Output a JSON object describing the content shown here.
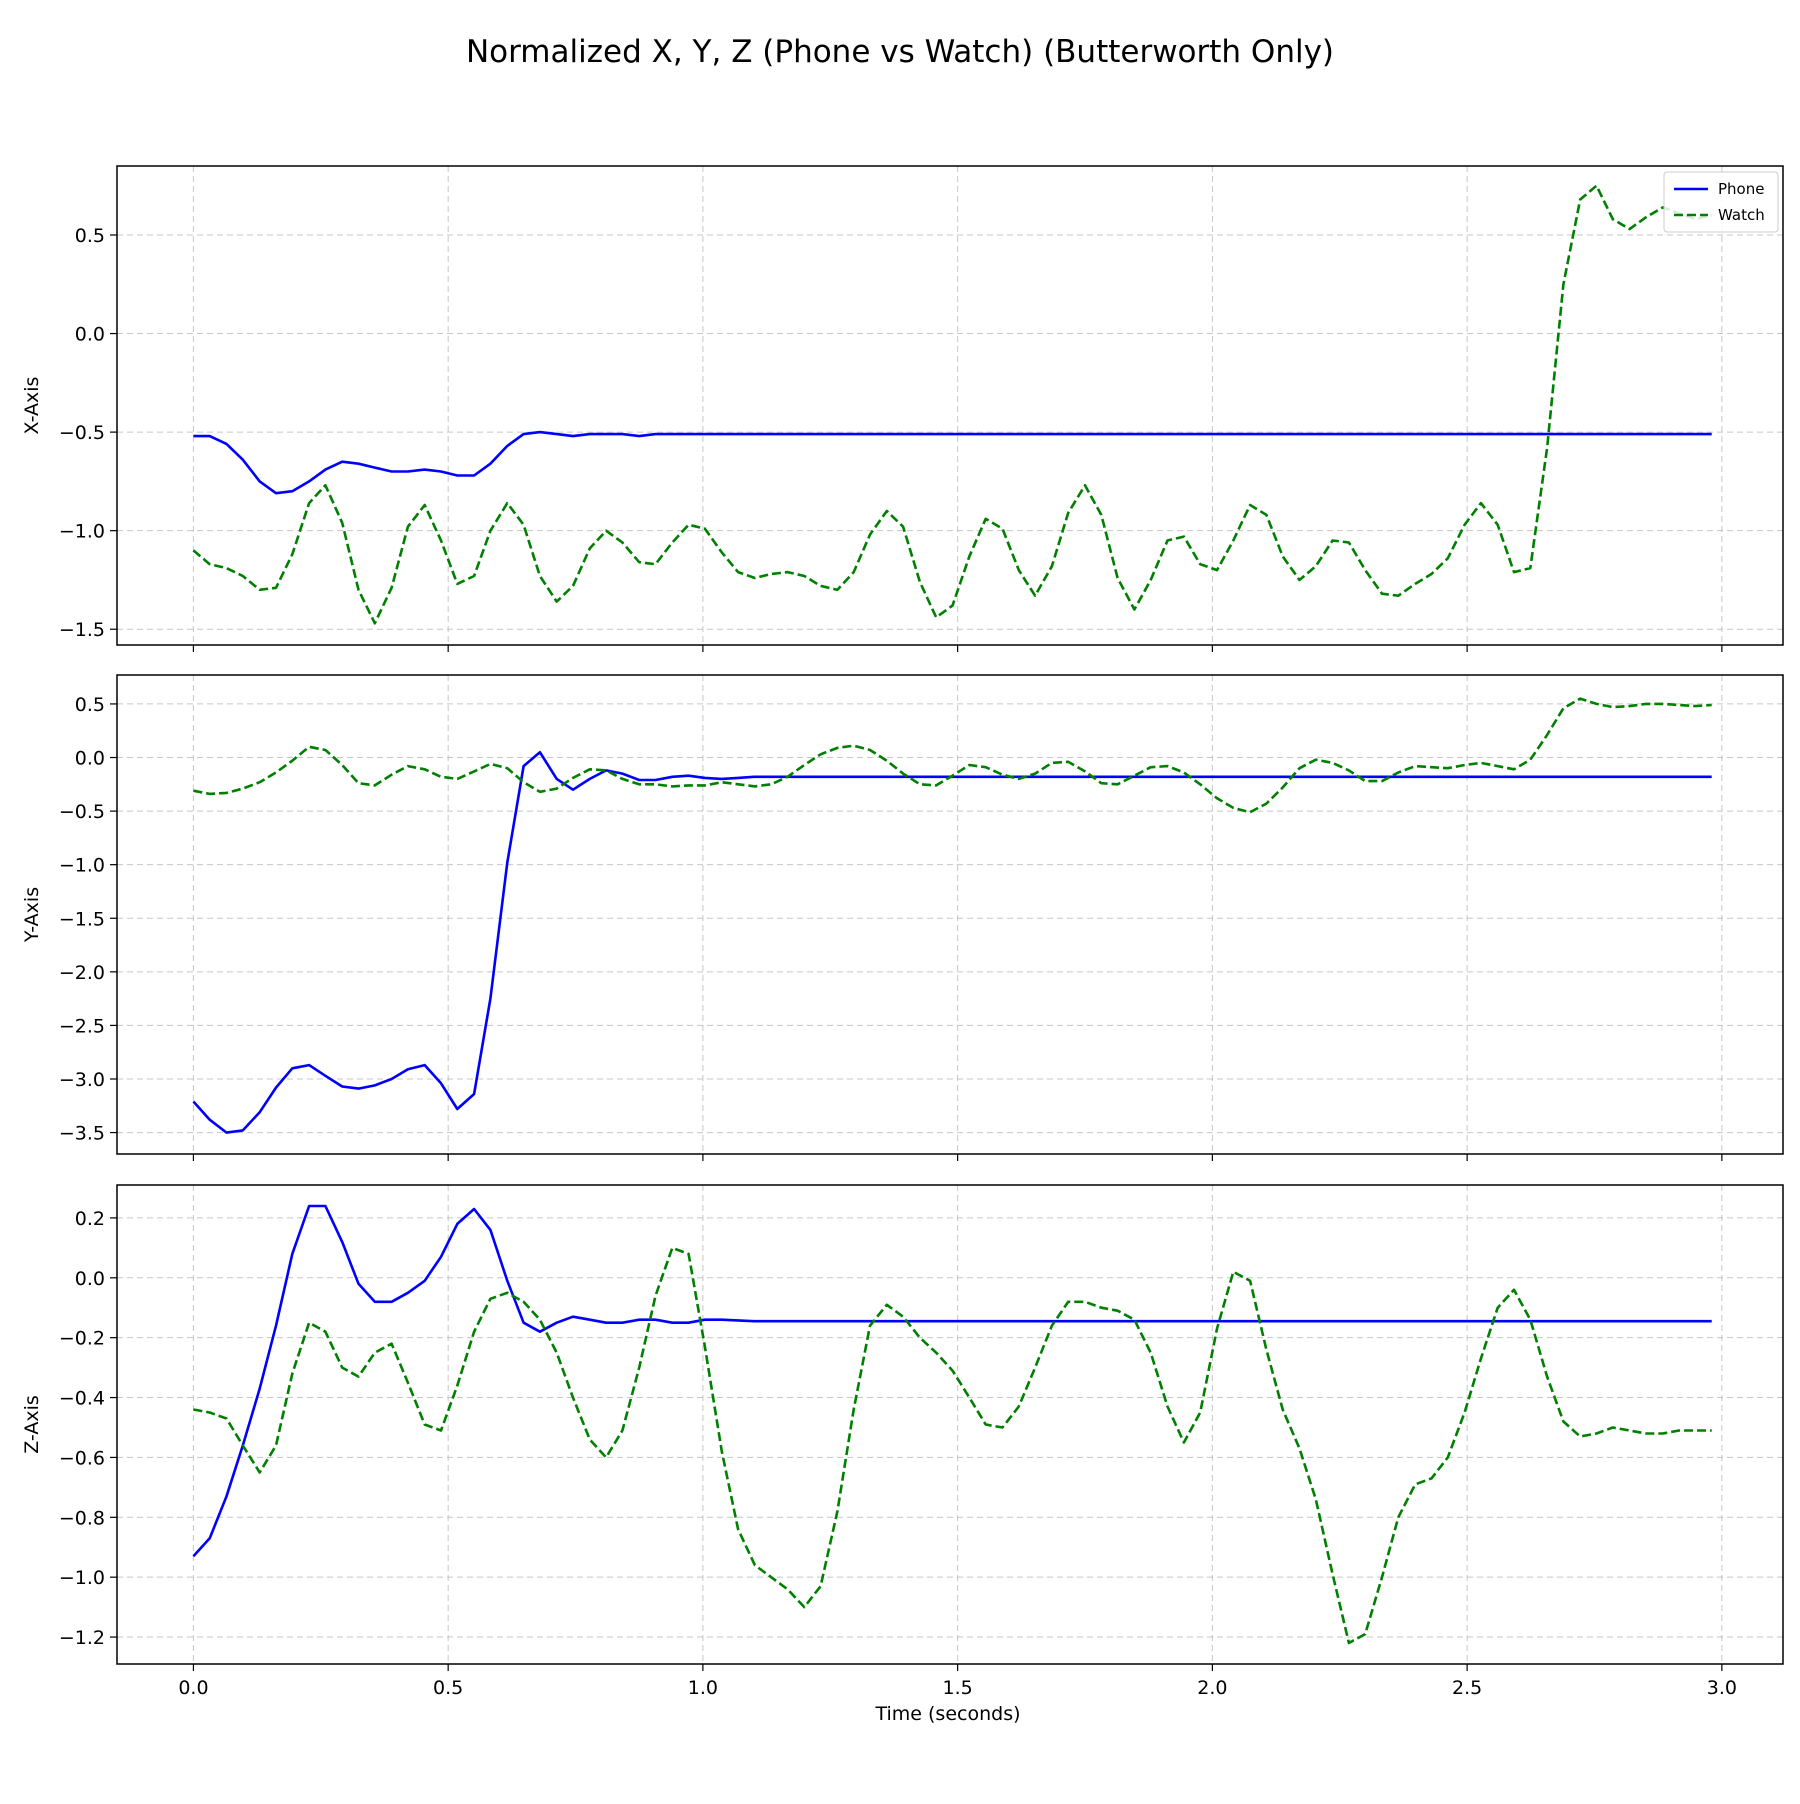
{
  "figure": {
    "title": "Normalized X, Y, Z (Phone vs Watch) (Butterworth Only)",
    "xlabel": "Time (seconds)",
    "colors": {
      "phone": "#0000ff",
      "watch": "#008000",
      "grid": "#b0b0b0"
    }
  },
  "chart_data": [
    {
      "type": "line",
      "ylabel": "X-Axis",
      "xlim": [
        -0.15,
        3.12
      ],
      "ylim": [
        -1.58,
        0.85
      ],
      "xticks": [
        0.0,
        0.5,
        1.0,
        1.5,
        2.0,
        2.5,
        3.0
      ],
      "yticks": [
        -1.5,
        -1.0,
        -0.5,
        0.0,
        0.5
      ],
      "ytick_labels": [
        "−1.5",
        "−1.0",
        "−0.5",
        "0.0",
        "0.5"
      ],
      "grid": true,
      "legend": {
        "position": "top-right",
        "entries": [
          "Phone",
          "Watch"
        ]
      },
      "series": [
        {
          "name": "Phone",
          "style": "solid",
          "x": [
            0.0,
            0.032,
            0.065,
            0.097,
            0.13,
            0.162,
            0.194,
            0.227,
            0.259,
            0.292,
            0.324,
            0.356,
            0.389,
            0.421,
            0.454,
            0.486,
            0.518,
            0.551,
            0.583,
            0.616,
            0.648,
            0.68,
            0.713,
            0.745,
            0.778,
            0.81,
            0.842,
            0.875,
            0.907,
            0.94,
            0.97,
            1.0,
            1.1,
            1.3,
            1.6,
            2.0,
            2.5,
            2.98
          ],
          "y": [
            -0.52,
            -0.52,
            -0.56,
            -0.64,
            -0.75,
            -0.81,
            -0.8,
            -0.75,
            -0.69,
            -0.65,
            -0.66,
            -0.68,
            -0.7,
            -0.7,
            -0.69,
            -0.7,
            -0.72,
            -0.72,
            -0.66,
            -0.57,
            -0.51,
            -0.5,
            -0.51,
            -0.52,
            -0.51,
            -0.51,
            -0.51,
            -0.52,
            -0.51,
            -0.51,
            -0.51,
            -0.51,
            -0.51,
            -0.51,
            -0.51,
            -0.51,
            -0.51,
            -0.51
          ]
        },
        {
          "name": "Watch",
          "style": "dashed",
          "x": [
            0.0,
            0.032,
            0.065,
            0.097,
            0.13,
            0.162,
            0.194,
            0.227,
            0.259,
            0.292,
            0.324,
            0.356,
            0.389,
            0.421,
            0.454,
            0.486,
            0.518,
            0.551,
            0.583,
            0.616,
            0.648,
            0.68,
            0.713,
            0.745,
            0.778,
            0.81,
            0.842,
            0.875,
            0.907,
            0.94,
            0.972,
            1.004,
            1.037,
            1.069,
            1.102,
            1.134,
            1.166,
            1.199,
            1.231,
            1.264,
            1.296,
            1.328,
            1.361,
            1.393,
            1.426,
            1.458,
            1.49,
            1.523,
            1.555,
            1.588,
            1.62,
            1.652,
            1.685,
            1.717,
            1.75,
            1.782,
            1.814,
            1.847,
            1.879,
            1.912,
            1.944,
            1.976,
            2.009,
            2.041,
            2.074,
            2.106,
            2.138,
            2.171,
            2.203,
            2.236,
            2.268,
            2.3,
            2.333,
            2.365,
            2.398,
            2.43,
            2.462,
            2.495,
            2.527,
            2.56,
            2.592,
            2.624,
            2.657,
            2.689,
            2.722,
            2.754,
            2.786,
            2.819,
            2.851,
            2.884,
            2.916,
            2.948,
            2.98
          ],
          "y": [
            -1.1,
            -1.17,
            -1.19,
            -1.23,
            -1.3,
            -1.29,
            -1.12,
            -0.86,
            -0.77,
            -0.96,
            -1.3,
            -1.47,
            -1.29,
            -0.98,
            -0.87,
            -1.05,
            -1.27,
            -1.23,
            -1.0,
            -0.86,
            -0.97,
            -1.23,
            -1.36,
            -1.28,
            -1.09,
            -1.0,
            -1.06,
            -1.16,
            -1.17,
            -1.06,
            -0.97,
            -0.99,
            -1.11,
            -1.21,
            -1.24,
            -1.22,
            -1.21,
            -1.23,
            -1.28,
            -1.3,
            -1.21,
            -1.02,
            -0.9,
            -0.98,
            -1.26,
            -1.44,
            -1.38,
            -1.13,
            -0.94,
            -0.99,
            -1.2,
            -1.33,
            -1.18,
            -0.91,
            -0.77,
            -0.92,
            -1.24,
            -1.4,
            -1.25,
            -1.05,
            -1.03,
            -1.17,
            -1.2,
            -1.05,
            -0.87,
            -0.92,
            -1.13,
            -1.25,
            -1.18,
            -1.05,
            -1.06,
            -1.2,
            -1.32,
            -1.33,
            -1.27,
            -1.22,
            -1.14,
            -0.97,
            -0.86,
            -0.97,
            -1.21,
            -1.19,
            -0.58,
            0.25,
            0.68,
            0.75,
            0.58,
            0.53,
            0.59,
            0.64,
            0.61,
            0.58,
            0.6
          ]
        }
      ]
    },
    {
      "type": "line",
      "ylabel": "Y-Axis",
      "xlim": [
        -0.15,
        3.12
      ],
      "ylim": [
        -3.7,
        0.77
      ],
      "xticks": [
        0.0,
        0.5,
        1.0,
        1.5,
        2.0,
        2.5,
        3.0
      ],
      "yticks": [
        -3.5,
        -3.0,
        -2.5,
        -2.0,
        -1.5,
        -1.0,
        -0.5,
        0.0,
        0.5
      ],
      "ytick_labels": [
        "−3.5",
        "−3.0",
        "−2.5",
        "−2.0",
        "−1.5",
        "−1.0",
        "−0.5",
        "0.0",
        "0.5"
      ],
      "grid": true,
      "series": [
        {
          "name": "Phone",
          "style": "solid",
          "x": [
            0.0,
            0.032,
            0.065,
            0.097,
            0.13,
            0.162,
            0.194,
            0.227,
            0.259,
            0.292,
            0.324,
            0.356,
            0.389,
            0.421,
            0.454,
            0.486,
            0.518,
            0.551,
            0.583,
            0.616,
            0.648,
            0.68,
            0.713,
            0.745,
            0.778,
            0.81,
            0.842,
            0.875,
            0.907,
            0.94,
            0.972,
            1.004,
            1.037,
            1.069,
            1.1,
            1.2,
            1.4,
            1.8,
            2.2,
            2.6,
            2.98
          ],
          "y": [
            -3.21,
            -3.38,
            -3.5,
            -3.48,
            -3.31,
            -3.08,
            -2.9,
            -2.87,
            -2.97,
            -3.07,
            -3.09,
            -3.06,
            -3.0,
            -2.91,
            -2.87,
            -3.04,
            -3.28,
            -3.14,
            -2.25,
            -0.98,
            -0.08,
            0.05,
            -0.2,
            -0.3,
            -0.2,
            -0.12,
            -0.15,
            -0.21,
            -0.21,
            -0.18,
            -0.17,
            -0.19,
            -0.2,
            -0.19,
            -0.18,
            -0.18,
            -0.18,
            -0.18,
            -0.18,
            -0.18,
            -0.18
          ]
        },
        {
          "name": "Watch",
          "style": "dashed",
          "x": [
            0.0,
            0.032,
            0.065,
            0.097,
            0.13,
            0.162,
            0.194,
            0.227,
            0.259,
            0.292,
            0.324,
            0.356,
            0.389,
            0.421,
            0.454,
            0.486,
            0.518,
            0.551,
            0.583,
            0.616,
            0.648,
            0.68,
            0.713,
            0.745,
            0.778,
            0.81,
            0.842,
            0.875,
            0.907,
            0.94,
            0.972,
            1.004,
            1.037,
            1.069,
            1.102,
            1.134,
            1.166,
            1.199,
            1.231,
            1.264,
            1.296,
            1.328,
            1.361,
            1.393,
            1.426,
            1.458,
            1.49,
            1.523,
            1.555,
            1.588,
            1.62,
            1.652,
            1.685,
            1.717,
            1.75,
            1.782,
            1.814,
            1.847,
            1.879,
            1.912,
            1.944,
            1.976,
            2.009,
            2.041,
            2.074,
            2.106,
            2.138,
            2.171,
            2.203,
            2.236,
            2.268,
            2.3,
            2.333,
            2.365,
            2.398,
            2.43,
            2.462,
            2.495,
            2.527,
            2.56,
            2.592,
            2.624,
            2.657,
            2.689,
            2.722,
            2.754,
            2.786,
            2.819,
            2.851,
            2.884,
            2.916,
            2.948,
            2.98
          ],
          "y": [
            -0.31,
            -0.34,
            -0.33,
            -0.29,
            -0.23,
            -0.14,
            -0.03,
            0.1,
            0.07,
            -0.07,
            -0.24,
            -0.26,
            -0.16,
            -0.08,
            -0.11,
            -0.18,
            -0.2,
            -0.13,
            -0.06,
            -0.1,
            -0.23,
            -0.32,
            -0.29,
            -0.19,
            -0.11,
            -0.12,
            -0.2,
            -0.25,
            -0.25,
            -0.27,
            -0.26,
            -0.26,
            -0.23,
            -0.25,
            -0.27,
            -0.25,
            -0.18,
            -0.07,
            0.03,
            0.09,
            0.11,
            0.07,
            -0.03,
            -0.15,
            -0.25,
            -0.26,
            -0.17,
            -0.07,
            -0.09,
            -0.16,
            -0.2,
            -0.15,
            -0.05,
            -0.04,
            -0.13,
            -0.24,
            -0.25,
            -0.17,
            -0.09,
            -0.08,
            -0.14,
            -0.25,
            -0.38,
            -0.47,
            -0.51,
            -0.43,
            -0.28,
            -0.1,
            -0.02,
            -0.05,
            -0.12,
            -0.22,
            -0.22,
            -0.14,
            -0.08,
            -0.09,
            -0.1,
            -0.07,
            -0.05,
            -0.08,
            -0.11,
            -0.02,
            0.21,
            0.46,
            0.55,
            0.5,
            0.47,
            0.48,
            0.5,
            0.5,
            0.49,
            0.48,
            0.49
          ]
        }
      ]
    },
    {
      "type": "line",
      "ylabel": "Z-Axis",
      "xlim": [
        -0.15,
        3.12
      ],
      "ylim": [
        -1.29,
        0.31
      ],
      "xticks": [
        0.0,
        0.5,
        1.0,
        1.5,
        2.0,
        2.5,
        3.0
      ],
      "xtick_labels": [
        "0.0",
        "0.5",
        "1.0",
        "1.5",
        "2.0",
        "2.5",
        "3.0"
      ],
      "yticks": [
        -1.2,
        -1.0,
        -0.8,
        -0.6,
        -0.4,
        -0.2,
        0.0,
        0.2
      ],
      "ytick_labels": [
        "−1.2",
        "−1.0",
        "−0.8",
        "−0.6",
        "−0.4",
        "−0.2",
        "0.0",
        "0.2"
      ],
      "grid": true,
      "series": [
        {
          "name": "Phone",
          "style": "solid",
          "x": [
            0.0,
            0.032,
            0.065,
            0.097,
            0.13,
            0.162,
            0.194,
            0.227,
            0.259,
            0.292,
            0.324,
            0.356,
            0.389,
            0.421,
            0.454,
            0.486,
            0.518,
            0.551,
            0.583,
            0.616,
            0.648,
            0.68,
            0.713,
            0.745,
            0.778,
            0.81,
            0.842,
            0.875,
            0.907,
            0.94,
            0.972,
            1.004,
            1.037,
            1.1,
            1.3,
            1.6,
            2.0,
            2.4,
            2.98
          ],
          "y": [
            -0.93,
            -0.87,
            -0.73,
            -0.56,
            -0.37,
            -0.16,
            0.08,
            0.24,
            0.24,
            0.12,
            -0.02,
            -0.08,
            -0.08,
            -0.05,
            -0.01,
            0.07,
            0.18,
            0.23,
            0.16,
            -0.01,
            -0.15,
            -0.18,
            -0.15,
            -0.13,
            -0.14,
            -0.15,
            -0.15,
            -0.14,
            -0.14,
            -0.15,
            -0.15,
            -0.14,
            -0.14,
            -0.145,
            -0.145,
            -0.145,
            -0.145,
            -0.145,
            -0.145
          ]
        },
        {
          "name": "Watch",
          "style": "dashed",
          "x": [
            0.0,
            0.032,
            0.065,
            0.097,
            0.13,
            0.162,
            0.194,
            0.227,
            0.259,
            0.292,
            0.324,
            0.356,
            0.389,
            0.421,
            0.454,
            0.486,
            0.518,
            0.551,
            0.583,
            0.616,
            0.648,
            0.68,
            0.713,
            0.745,
            0.778,
            0.81,
            0.842,
            0.875,
            0.907,
            0.94,
            0.972,
            1.004,
            1.037,
            1.069,
            1.102,
            1.134,
            1.166,
            1.199,
            1.231,
            1.264,
            1.296,
            1.328,
            1.361,
            1.393,
            1.426,
            1.458,
            1.49,
            1.523,
            1.555,
            1.588,
            1.62,
            1.652,
            1.685,
            1.717,
            1.75,
            1.782,
            1.814,
            1.847,
            1.879,
            1.912,
            1.944,
            1.976,
            2.009,
            2.041,
            2.074,
            2.106,
            2.138,
            2.171,
            2.203,
            2.236,
            2.268,
            2.3,
            2.333,
            2.365,
            2.398,
            2.43,
            2.462,
            2.495,
            2.527,
            2.56,
            2.592,
            2.624,
            2.657,
            2.689,
            2.722,
            2.754,
            2.786,
            2.819,
            2.851,
            2.884,
            2.916,
            2.948,
            2.98
          ],
          "y": [
            -0.44,
            -0.45,
            -0.47,
            -0.56,
            -0.65,
            -0.56,
            -0.32,
            -0.15,
            -0.18,
            -0.3,
            -0.33,
            -0.25,
            -0.22,
            -0.35,
            -0.49,
            -0.51,
            -0.36,
            -0.18,
            -0.07,
            -0.05,
            -0.08,
            -0.14,
            -0.25,
            -0.4,
            -0.54,
            -0.6,
            -0.51,
            -0.3,
            -0.06,
            0.1,
            0.08,
            -0.23,
            -0.58,
            -0.84,
            -0.96,
            -1.0,
            -1.04,
            -1.1,
            -1.03,
            -0.78,
            -0.44,
            -0.16,
            -0.09,
            -0.13,
            -0.2,
            -0.25,
            -0.31,
            -0.4,
            -0.49,
            -0.5,
            -0.43,
            -0.3,
            -0.16,
            -0.08,
            -0.08,
            -0.1,
            -0.11,
            -0.14,
            -0.25,
            -0.43,
            -0.55,
            -0.45,
            -0.17,
            0.02,
            -0.01,
            -0.24,
            -0.44,
            -0.57,
            -0.74,
            -0.99,
            -1.22,
            -1.19,
            -1.0,
            -0.8,
            -0.69,
            -0.67,
            -0.6,
            -0.45,
            -0.27,
            -0.1,
            -0.04,
            -0.14,
            -0.33,
            -0.48,
            -0.53,
            -0.52,
            -0.5,
            -0.51,
            -0.52,
            -0.52,
            -0.51,
            -0.51,
            -0.51
          ]
        }
      ]
    }
  ]
}
